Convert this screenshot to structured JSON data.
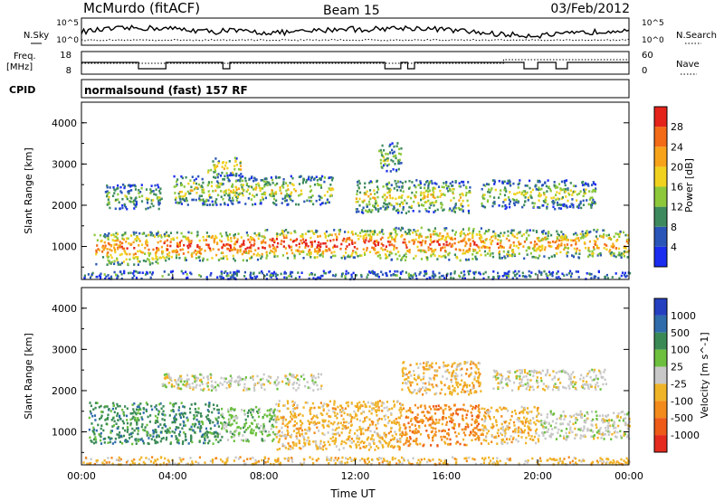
{
  "header": {
    "title": "McMurdo (fitACF)",
    "beam": "Beam 15",
    "date": "03/Feb/2012"
  },
  "top_panels": {
    "nsky_label": "N.Sky",
    "nsky_ticks": [
      "10^5",
      "10^0"
    ],
    "nsearch_label": "N.Search",
    "nsearch_ticks": [
      "10^5",
      "10^0"
    ],
    "freq_label_line1": "Freq.",
    "freq_label_line2": "[MHz]",
    "freq_ticks": [
      "18",
      "8"
    ],
    "nave_label": "Nave",
    "nave_ticks": [
      "60",
      "0"
    ],
    "cpid_label": "CPID",
    "cpid_text": "normalsound (fast) 157 RF"
  },
  "x_axis": {
    "ticks": [
      "00:00",
      "04:00",
      "08:00",
      "12:00",
      "16:00",
      "20:00",
      "00:00"
    ],
    "label": "Time UT"
  },
  "chart_data": [
    {
      "type": "heatmap",
      "parameter": "Power",
      "ylabel": "Slant Range [km]",
      "yticks": [
        "1000",
        "2000",
        "3000",
        "4000"
      ],
      "ylim": [
        200,
        4500
      ],
      "x_hours": [
        0,
        24
      ],
      "colorbar_label": "Power [dB]",
      "colorbar_ticks": [
        "4",
        "8",
        "12",
        "16",
        "20",
        "24",
        "28"
      ],
      "colorbar_colors": [
        "#1a2cf0",
        "#2a55b8",
        "#3d8a5e",
        "#8cc83a",
        "#f0d21e",
        "#f7a31a",
        "#f36b16",
        "#e4231b"
      ],
      "bands": [
        {
          "t": [
            0.5,
            3.5
          ],
          "r": [
            550,
            1350
          ],
          "level": 0.75
        },
        {
          "t": [
            3.5,
            8.0
          ],
          "r": [
            650,
            1350
          ],
          "level": 0.85
        },
        {
          "t": [
            8.0,
            13.5
          ],
          "r": [
            700,
            1400
          ],
          "level": 0.9
        },
        {
          "t": [
            13.5,
            17.5
          ],
          "r": [
            650,
            1450
          ],
          "level": 0.8
        },
        {
          "t": [
            17.5,
            24.0
          ],
          "r": [
            700,
            1400
          ],
          "level": 0.7
        },
        {
          "t": [
            1.0,
            3.5
          ],
          "r": [
            1900,
            2500
          ],
          "level": 0.4
        },
        {
          "t": [
            4.0,
            11.0
          ],
          "r": [
            2000,
            2700
          ],
          "level": 0.5
        },
        {
          "t": [
            12.0,
            17.0
          ],
          "r": [
            1800,
            2600
          ],
          "level": 0.55
        },
        {
          "t": [
            17.5,
            22.5
          ],
          "r": [
            1900,
            2600
          ],
          "level": 0.45
        },
        {
          "t": [
            5.5,
            7.0
          ],
          "r": [
            2700,
            3150
          ],
          "level": 0.6
        },
        {
          "t": [
            13.0,
            14.0
          ],
          "r": [
            2800,
            3500
          ],
          "level": 0.4
        },
        {
          "t": [
            0.0,
            24.0
          ],
          "r": [
            200,
            400
          ],
          "level": 0.25
        }
      ]
    },
    {
      "type": "heatmap",
      "parameter": "Velocity",
      "ylabel": "Slant Range [km]",
      "yticks": [
        "1000",
        "2000",
        "3000",
        "4000"
      ],
      "ylim": [
        200,
        4500
      ],
      "x_hours": [
        0,
        24
      ],
      "colorbar_label": "Velocity [m s^-1]",
      "colorbar_ticks": [
        "1000",
        "500",
        "100",
        "25",
        "-25",
        "-100",
        "-500",
        "-1000"
      ],
      "colorbar_colors": [
        "#2440c0",
        "#2e6cab",
        "#3a8a55",
        "#6cc03e",
        "#c8c8c8",
        "#f0b428",
        "#f28a1c",
        "#ee5a18",
        "#e42b1e"
      ],
      "bands": [
        {
          "t": [
            0.3,
            6.0
          ],
          "r": [
            700,
            1700
          ],
          "v": 100
        },
        {
          "t": [
            6.0,
            8.5
          ],
          "r": [
            750,
            1600
          ],
          "v": 25
        },
        {
          "t": [
            8.5,
            14.0
          ],
          "r": [
            550,
            1750
          ],
          "v": -100
        },
        {
          "t": [
            14.0,
            17.5
          ],
          "r": [
            650,
            1650
          ],
          "v": -500
        },
        {
          "t": [
            17.5,
            20.0
          ],
          "r": [
            700,
            1600
          ],
          "v": -100
        },
        {
          "t": [
            20.0,
            24.0
          ],
          "r": [
            800,
            1500
          ],
          "v": -25
        },
        {
          "t": [
            3.5,
            10.5
          ],
          "r": [
            2000,
            2400
          ],
          "v": -25
        },
        {
          "t": [
            14.0,
            17.5
          ],
          "r": [
            1900,
            2700
          ],
          "v": -100
        },
        {
          "t": [
            18.0,
            23.0
          ],
          "r": [
            2000,
            2500
          ],
          "v": -25
        },
        {
          "t": [
            0.0,
            24.0
          ],
          "r": [
            200,
            380
          ],
          "v": -100
        }
      ]
    }
  ]
}
